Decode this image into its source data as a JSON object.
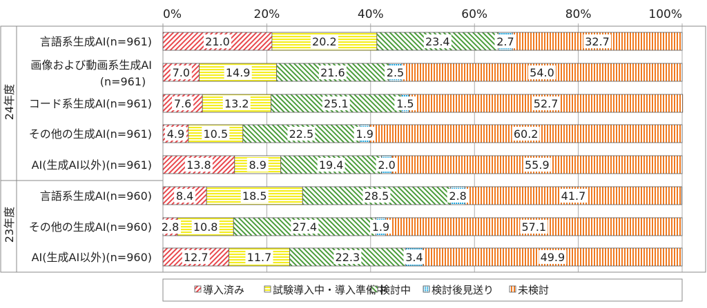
{
  "chart_data": {
    "type": "bar",
    "orientation": "horizontal",
    "stacked": true,
    "xlim": [
      0,
      100
    ],
    "xticks": [
      "0%",
      "20%",
      "40%",
      "60%",
      "80%",
      "100%"
    ],
    "groups": [
      {
        "label": "24年度",
        "rows": [
          0,
          1,
          2,
          3,
          4
        ]
      },
      {
        "label": "23年度",
        "rows": [
          5,
          6,
          7
        ]
      }
    ],
    "categories": [
      "言語系生成AI(n=961)",
      "画像および動画系生成AI\n(n=961)",
      "コード系生成AI(n=961)",
      "その他の生成AI(n=961)",
      "AI(生成AI以外)(n=961)",
      "言語系生成AI(n=960)",
      "その他の生成AI(n=960)",
      "AI(生成AI以外)(n=960)"
    ],
    "series": [
      {
        "name": "導入済み",
        "color": "#e8474c",
        "pattern": "diagonal-hatch",
        "values": [
          21.0,
          7.0,
          7.6,
          4.9,
          13.8,
          8.4,
          2.8,
          12.7
        ]
      },
      {
        "name": "試験導入中・導入準備中",
        "color": "#f5ee1f",
        "pattern": "horizontal-stripes",
        "values": [
          20.2,
          14.9,
          13.2,
          10.5,
          8.9,
          18.5,
          10.8,
          11.7
        ]
      },
      {
        "name": "検討中",
        "color": "#4a9c3a",
        "pattern": "diagonal-hatch",
        "values": [
          23.4,
          21.6,
          25.1,
          22.5,
          19.4,
          28.5,
          27.4,
          22.3
        ]
      },
      {
        "name": "検討後見送り",
        "color": "#1fa8e0",
        "pattern": "dots",
        "values": [
          2.7,
          2.5,
          1.5,
          1.9,
          2.0,
          2.8,
          1.9,
          3.4
        ]
      },
      {
        "name": "未検討",
        "color": "#f07a20",
        "pattern": "vertical-stripes",
        "values": [
          32.7,
          54.0,
          52.7,
          60.2,
          55.9,
          41.7,
          57.1,
          49.9
        ]
      }
    ],
    "legend": "bottom"
  }
}
